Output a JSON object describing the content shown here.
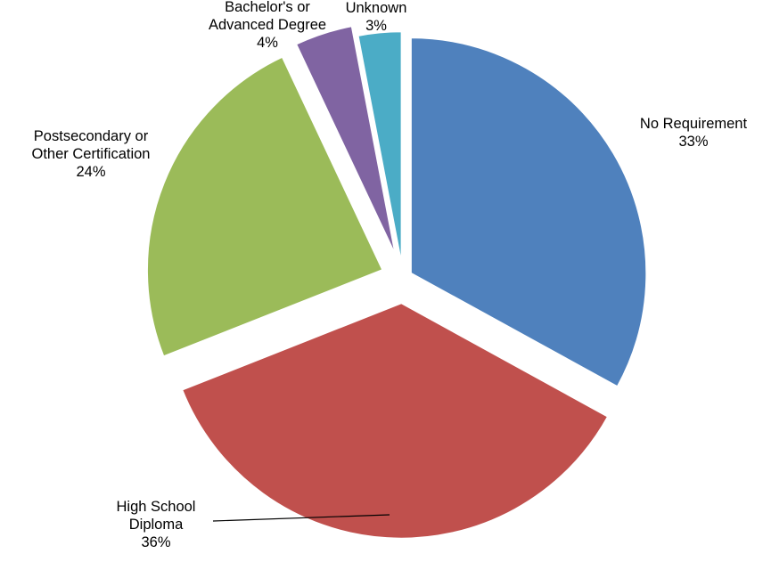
{
  "chart_data": {
    "type": "pie",
    "title": "",
    "start": "12 o'clock",
    "direction": "clockwise",
    "exploded": true,
    "slices": [
      {
        "label_lines": [
          "No Requirement"
        ],
        "percent_label": "33%",
        "value": 33,
        "color": "#4F81BD"
      },
      {
        "label_lines": [
          "High School",
          "Diploma"
        ],
        "percent_label": "36%",
        "value": 36,
        "color": "#C0504D"
      },
      {
        "label_lines": [
          "Postsecondary or",
          "Other Certification"
        ],
        "percent_label": "24%",
        "value": 24,
        "color": "#9BBB59"
      },
      {
        "label_lines": [
          "Bachelor's or",
          "Advanced Degree"
        ],
        "percent_label": "4%",
        "value": 4,
        "color": "#8064A2"
      },
      {
        "label_lines": [
          "Unknown"
        ],
        "percent_label": "3%",
        "value": 3,
        "color": "#4BACC6"
      }
    ]
  }
}
